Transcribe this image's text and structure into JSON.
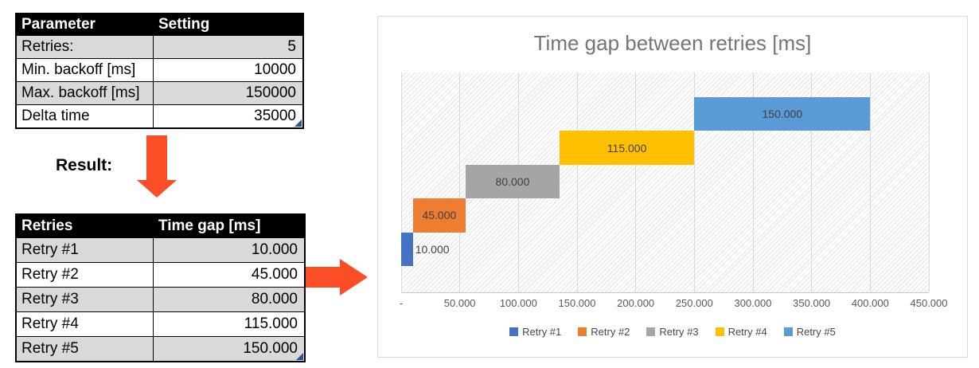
{
  "left_panel": {
    "params_table": {
      "headers": [
        "Parameter",
        "Setting"
      ],
      "rows": [
        {
          "label": "Retries:",
          "value": "5"
        },
        {
          "label": "Min. backoff [ms]",
          "value": "10000"
        },
        {
          "label": "Max. backoff [ms]",
          "value": "150000"
        },
        {
          "label": "Delta time",
          "value": "35000"
        }
      ]
    },
    "result_label": "Result:",
    "result_table": {
      "headers": [
        "Retries",
        "Time gap [ms]"
      ],
      "rows": [
        {
          "label": "Retry #1",
          "value": "10.000"
        },
        {
          "label": "Retry #2",
          "value": "45.000"
        },
        {
          "label": "Retry #3",
          "value": "80.000"
        },
        {
          "label": "Retry #4",
          "value": "115.000"
        },
        {
          "label": "Retry #5",
          "value": "150.000"
        }
      ]
    },
    "icons": {
      "down_arrow": "solid orange down arrow shape",
      "right_arrow": "solid orange right arrow shape"
    }
  },
  "chart_data": {
    "type": "bar",
    "orientation": "horizontal-cascade",
    "title": "Time gap between retries [ms]",
    "categories": [
      "Retry #1",
      "Retry #2",
      "Retry #3",
      "Retry #4",
      "Retry #5"
    ],
    "values": [
      10000,
      45000,
      80000,
      115000,
      150000
    ],
    "bar_starts": [
      0,
      10000,
      55000,
      135000,
      250000
    ],
    "data_labels": [
      "10.000",
      "45.000",
      "80.000",
      "115.000",
      "150.000"
    ],
    "label_placement": [
      "outside-end",
      "center",
      "center",
      "center",
      "center"
    ],
    "series_colors": [
      "#4472C4",
      "#ED7D31",
      "#A5A5A5",
      "#FFC000",
      "#5B9BD5"
    ],
    "xlim": [
      0,
      450000
    ],
    "x_ticks": [
      {
        "value": 0,
        "label": "-"
      },
      {
        "value": 50000,
        "label": "50.000"
      },
      {
        "value": 100000,
        "label": "100.000"
      },
      {
        "value": 150000,
        "label": "150.000"
      },
      {
        "value": 200000,
        "label": "200.000"
      },
      {
        "value": 250000,
        "label": "250.000"
      },
      {
        "value": 300000,
        "label": "300.000"
      },
      {
        "value": 350000,
        "label": "350.000"
      },
      {
        "value": 400000,
        "label": "400.000"
      },
      {
        "value": 450000,
        "label": "450.000"
      }
    ],
    "grid": "vertical",
    "plot_background": "diagonal-hatch",
    "legend_position": "bottom",
    "legend": [
      "Retry #1",
      "Retry #2",
      "Retry #3",
      "Retry #4",
      "Retry #5"
    ]
  },
  "colors": {
    "arrow_accent": "#FB4D26",
    "table_header_bg": "#000000",
    "table_header_text": "#FFFFFF",
    "table_stripe": "#D9D9D9",
    "corner_marker": "#2F5496",
    "chart_border": "#D9D9D9",
    "gridline": "#D9D9D9",
    "hatch_line": "#E4E4E4",
    "axis_text": "#595959",
    "title_text": "#757575",
    "bar_label_text": "#3F3F3F"
  }
}
